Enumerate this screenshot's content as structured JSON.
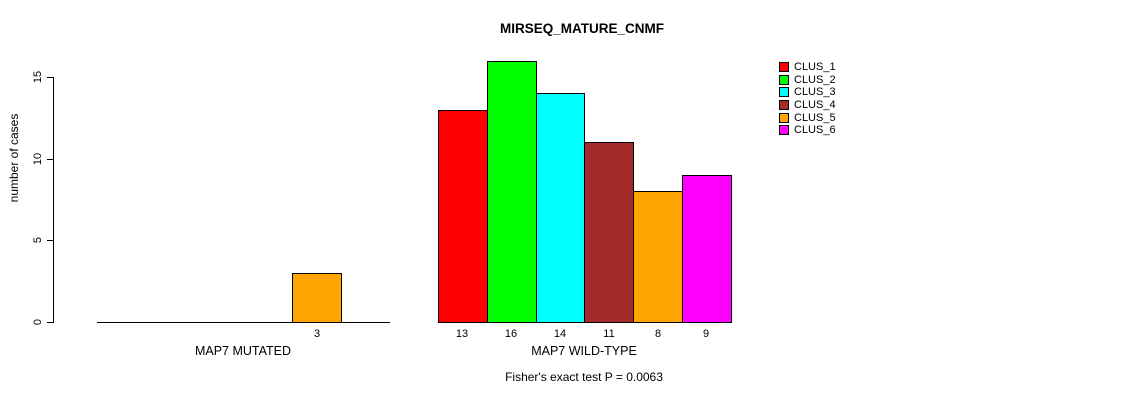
{
  "chart_data": {
    "type": "bar",
    "title": "MIRSEQ_MATURE_CNMF",
    "ylabel": "number of cases",
    "xlabel": "",
    "ylim": [
      0,
      16.4
    ],
    "yticks": [
      0,
      5,
      10,
      15
    ],
    "grid": false,
    "legend_position": "top-right",
    "categories": [
      "MAP7 MUTATED",
      "MAP7 WILD-TYPE"
    ],
    "series": [
      {
        "name": "CLUS_1",
        "color": "#ff0000",
        "values": [
          0,
          13
        ]
      },
      {
        "name": "CLUS_2",
        "color": "#00ff00",
        "values": [
          0,
          16
        ]
      },
      {
        "name": "CLUS_3",
        "color": "#00ffff",
        "values": [
          0,
          14
        ]
      },
      {
        "name": "CLUS_4",
        "color": "#a52a2a",
        "values": [
          0,
          11
        ]
      },
      {
        "name": "CLUS_5",
        "color": "#ffa500",
        "values": [
          3,
          8
        ]
      },
      {
        "name": "CLUS_6",
        "color": "#ff00ff",
        "values": [
          0,
          9
        ]
      }
    ],
    "bar_value_labels": [
      [
        "",
        "",
        "",
        "",
        "3",
        ""
      ],
      [
        "13",
        "16",
        "14",
        "11",
        "8",
        "9"
      ]
    ],
    "annotation": "Fisher's exact test P = 0.0063"
  },
  "colors": {
    "axis": "#000000",
    "text": "#000000",
    "background": "#ffffff"
  }
}
